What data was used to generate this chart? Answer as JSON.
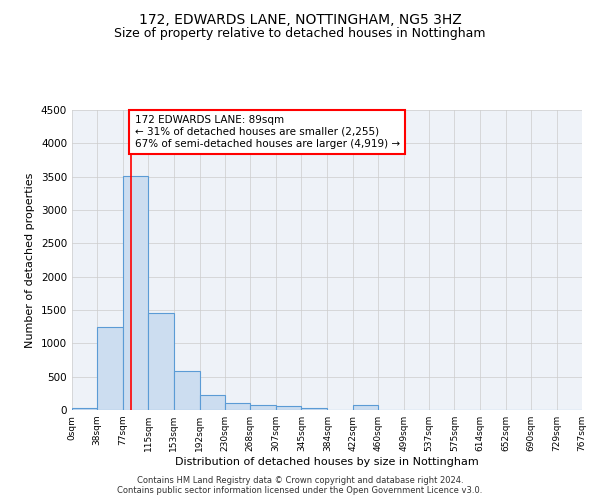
{
  "title": "172, EDWARDS LANE, NOTTINGHAM, NG5 3HZ",
  "subtitle": "Size of property relative to detached houses in Nottingham",
  "xlabel": "Distribution of detached houses by size in Nottingham",
  "ylabel": "Number of detached properties",
  "footer_line1": "Contains HM Land Registry data © Crown copyright and database right 2024.",
  "footer_line2": "Contains public sector information licensed under the Open Government Licence v3.0.",
  "bar_edges": [
    0,
    38,
    77,
    115,
    153,
    192,
    230,
    268,
    307,
    345,
    384,
    422,
    460,
    499,
    537,
    575,
    614,
    652,
    690,
    729,
    767
  ],
  "bar_heights": [
    30,
    1240,
    3510,
    1460,
    580,
    220,
    110,
    80,
    55,
    30,
    0,
    70,
    0,
    0,
    0,
    0,
    0,
    0,
    0,
    0
  ],
  "bar_color": "#ccddf0",
  "bar_edge_color": "#5b9bd5",
  "bar_linewidth": 0.8,
  "vline_x": 89,
  "vline_color": "red",
  "vline_linewidth": 1.2,
  "annotation_text": "172 EDWARDS LANE: 89sqm\n← 31% of detached houses are smaller (2,255)\n67% of semi-detached houses are larger (4,919) →",
  "annotation_box_color": "white",
  "annotation_box_edgecolor": "red",
  "annotation_fontsize": 7.5,
  "ylim": [
    0,
    4500
  ],
  "xlim": [
    0,
    767
  ],
  "grid_color": "#cccccc",
  "background_color": "#eef2f8",
  "title_fontsize": 10,
  "subtitle_fontsize": 9,
  "xlabel_fontsize": 8,
  "ylabel_fontsize": 8,
  "tick_labels": [
    "0sqm",
    "38sqm",
    "77sqm",
    "115sqm",
    "153sqm",
    "192sqm",
    "230sqm",
    "268sqm",
    "307sqm",
    "345sqm",
    "384sqm",
    "422sqm",
    "460sqm",
    "499sqm",
    "537sqm",
    "575sqm",
    "614sqm",
    "652sqm",
    "690sqm",
    "729sqm",
    "767sqm"
  ],
  "yticks": [
    0,
    500,
    1000,
    1500,
    2000,
    2500,
    3000,
    3500,
    4000,
    4500
  ],
  "title_fontweight": "normal"
}
